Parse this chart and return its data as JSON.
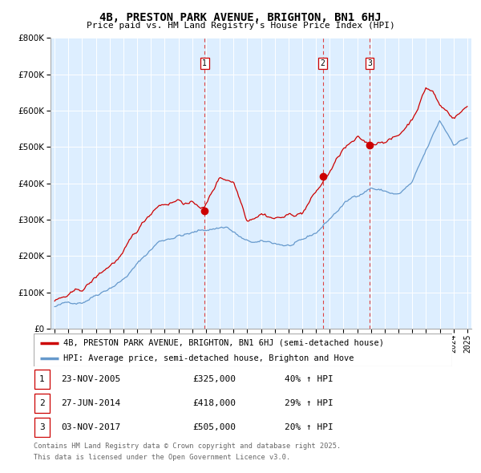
{
  "title": "4B, PRESTON PARK AVENUE, BRIGHTON, BN1 6HJ",
  "subtitle": "Price paid vs. HM Land Registry's House Price Index (HPI)",
  "legend_property": "4B, PRESTON PARK AVENUE, BRIGHTON, BN1 6HJ (semi-detached house)",
  "legend_hpi": "HPI: Average price, semi-detached house, Brighton and Hove",
  "footer1": "Contains HM Land Registry data © Crown copyright and database right 2025.",
  "footer2": "This data is licensed under the Open Government Licence v3.0.",
  "sales": [
    {
      "label": "1",
      "date": "23-NOV-2005",
      "price": 325000,
      "pct": "40%",
      "x": 2005.9
    },
    {
      "label": "2",
      "date": "27-JUN-2014",
      "price": 418000,
      "pct": "29%",
      "x": 2014.5
    },
    {
      "label": "3",
      "date": "03-NOV-2017",
      "price": 505000,
      "pct": "20%",
      "x": 2017.9
    }
  ],
  "property_color": "#cc0000",
  "hpi_color": "#6699cc",
  "vline_color": "#dd4444",
  "chart_bg": "#ddeeff",
  "ylim": [
    0,
    800000
  ],
  "yticks": [
    0,
    100000,
    200000,
    300000,
    400000,
    500000,
    600000,
    700000,
    800000
  ],
  "xlim_start": 1994.7,
  "xlim_end": 2025.3
}
